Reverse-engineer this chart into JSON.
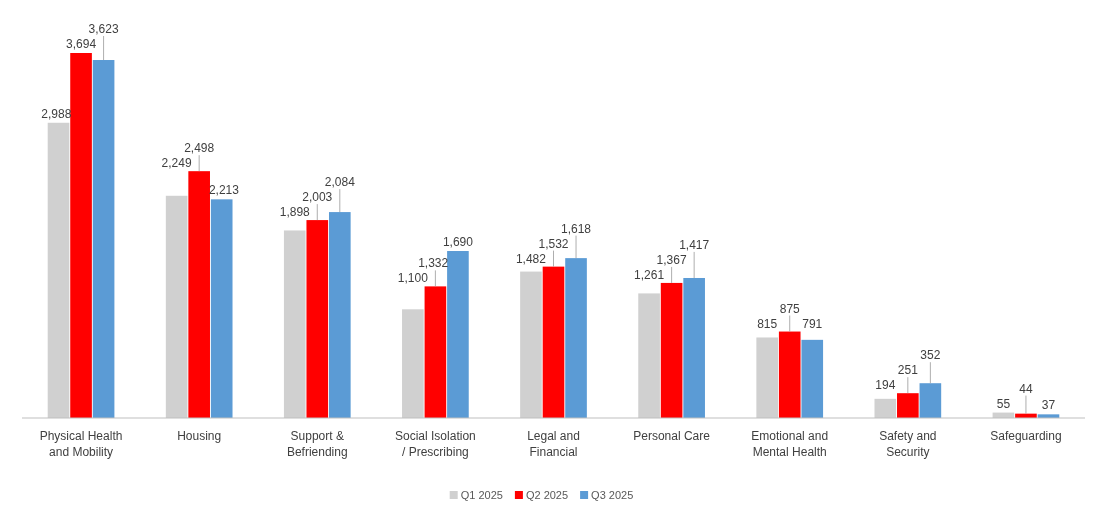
{
  "chart_data": {
    "type": "bar",
    "categories": [
      "Physical Health and Mobility",
      "Housing",
      "Support & Befriending",
      "Social Isolation / Prescribing",
      "Legal and Financial",
      "Personal Care",
      "Emotional and Mental Health",
      "Safety and Security",
      "Safeguarding"
    ],
    "series": [
      {
        "name": "Q1 2025",
        "color": "#d0d0d0",
        "values": [
          2988,
          2249,
          1898,
          1100,
          1482,
          1261,
          815,
          194,
          55
        ],
        "value_labels": [
          "2,988",
          "2,249",
          "1,898",
          "1,100",
          "1,482",
          "1,261",
          "815",
          "194",
          "55"
        ]
      },
      {
        "name": "Q2 2025",
        "color": "#ff0000",
        "values": [
          3694,
          2498,
          2003,
          1332,
          1532,
          1367,
          875,
          251,
          44
        ],
        "value_labels": [
          "3,694",
          "2,498",
          "2,003",
          "1,332",
          "1,532",
          "1,367",
          "875",
          "251",
          "44"
        ]
      },
      {
        "name": "Q3 2025",
        "color": "#5b9bd5",
        "values": [
          3623,
          2213,
          2084,
          1690,
          1618,
          1417,
          791,
          352,
          37
        ],
        "value_labels": [
          "3,623",
          "2,213",
          "2,084",
          "1,690",
          "1,618",
          "1,417",
          "791",
          "352",
          "37"
        ]
      }
    ],
    "legend": "bottom"
  }
}
